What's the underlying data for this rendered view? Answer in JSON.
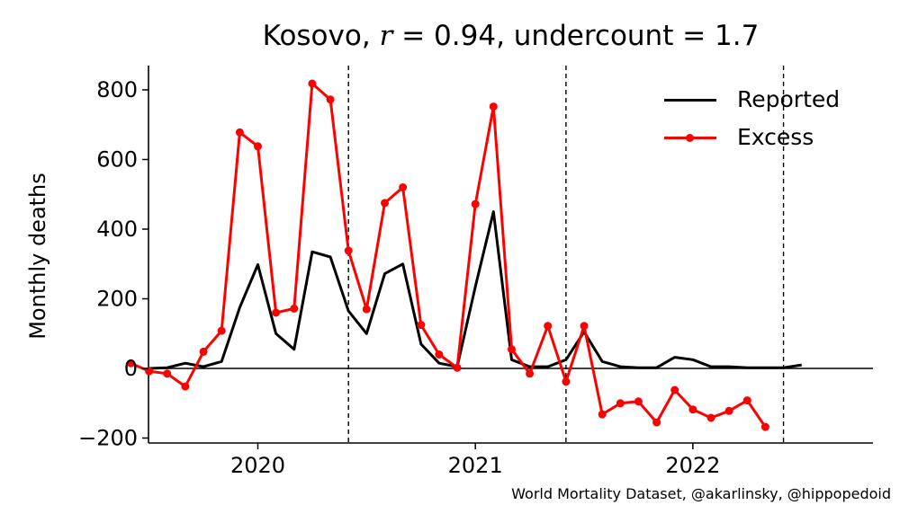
{
  "title": {
    "prefix": "Kosovo, ",
    "r_symbol": "r",
    "r_part": " = 0.94, undercount = 1.7"
  },
  "credit": "World Mortality Dataset, @akarlinsky, @hippopedoid",
  "chart_data": {
    "type": "line",
    "title": "Kosovo, r = 0.94, undercount = 1.7",
    "ylabel": "Monthly deaths",
    "xlabel": "",
    "x_ticks": [
      {
        "label": "2020",
        "value": "2020-01"
      },
      {
        "label": "2021",
        "value": "2021-01"
      },
      {
        "label": "2022",
        "value": "2022-01"
      }
    ],
    "y_ticks": [
      -200,
      0,
      200,
      400,
      600,
      800
    ],
    "y_tick_labels": [
      "−200",
      "0",
      "200",
      "400",
      "600",
      "800"
    ],
    "xlim": [
      "2019-06",
      "2022-11"
    ],
    "ylim": [
      -215,
      865
    ],
    "zero_line": true,
    "grid": false,
    "legend_position": "top-right",
    "vertical_lines": [
      "2020-06",
      "2021-06",
      "2022-06"
    ],
    "series": [
      {
        "name": "Reported",
        "color": "#000000",
        "marker": false,
        "points": [
          {
            "x": "2019-07",
            "y": 0
          },
          {
            "x": "2019-08",
            "y": 2
          },
          {
            "x": "2019-09",
            "y": 15
          },
          {
            "x": "2019-10",
            "y": 5
          },
          {
            "x": "2019-11",
            "y": 20
          },
          {
            "x": "2019-12",
            "y": 175
          },
          {
            "x": "2020-01",
            "y": 298
          },
          {
            "x": "2020-02",
            "y": 100
          },
          {
            "x": "2020-03",
            "y": 55
          },
          {
            "x": "2020-04",
            "y": 335
          },
          {
            "x": "2020-05",
            "y": 320
          },
          {
            "x": "2020-06",
            "y": 165
          },
          {
            "x": "2020-07",
            "y": 100
          },
          {
            "x": "2020-08",
            "y": 272
          },
          {
            "x": "2020-09",
            "y": 300
          },
          {
            "x": "2020-10",
            "y": 70
          },
          {
            "x": "2020-11",
            "y": 15
          },
          {
            "x": "2020-12",
            "y": 5
          },
          {
            "x": "2021-01",
            "y": 235
          },
          {
            "x": "2021-02",
            "y": 450
          },
          {
            "x": "2021-03",
            "y": 25
          },
          {
            "x": "2021-04",
            "y": 5
          },
          {
            "x": "2021-05",
            "y": 5
          },
          {
            "x": "2021-06",
            "y": 25
          },
          {
            "x": "2021-07",
            "y": 105
          },
          {
            "x": "2021-08",
            "y": 20
          },
          {
            "x": "2021-09",
            "y": 5
          },
          {
            "x": "2021-10",
            "y": 2
          },
          {
            "x": "2021-11",
            "y": 2
          },
          {
            "x": "2021-12",
            "y": 32
          },
          {
            "x": "2022-01",
            "y": 25
          },
          {
            "x": "2022-02",
            "y": 5
          },
          {
            "x": "2022-03",
            "y": 5
          },
          {
            "x": "2022-04",
            "y": 2
          },
          {
            "x": "2022-05",
            "y": 2
          },
          {
            "x": "2022-06",
            "y": 2
          },
          {
            "x": "2022-07",
            "y": 10
          }
        ]
      },
      {
        "name": "Excess",
        "color": "#ff0000",
        "marker": true,
        "points": [
          {
            "x": "2019-06",
            "y": 15
          },
          {
            "x": "2019-07",
            "y": -8
          },
          {
            "x": "2019-08",
            "y": -15
          },
          {
            "x": "2019-09",
            "y": -52
          },
          {
            "x": "2019-10",
            "y": 48
          },
          {
            "x": "2019-11",
            "y": 108
          },
          {
            "x": "2019-12",
            "y": 678
          },
          {
            "x": "2020-01",
            "y": 638
          },
          {
            "x": "2020-02",
            "y": 160
          },
          {
            "x": "2020-03",
            "y": 172
          },
          {
            "x": "2020-04",
            "y": 818
          },
          {
            "x": "2020-05",
            "y": 772
          },
          {
            "x": "2020-06",
            "y": 338
          },
          {
            "x": "2020-07",
            "y": 170
          },
          {
            "x": "2020-08",
            "y": 475
          },
          {
            "x": "2020-09",
            "y": 520
          },
          {
            "x": "2020-10",
            "y": 125
          },
          {
            "x": "2020-11",
            "y": 40
          },
          {
            "x": "2020-12",
            "y": 2
          },
          {
            "x": "2021-01",
            "y": 472
          },
          {
            "x": "2021-02",
            "y": 752
          },
          {
            "x": "2021-03",
            "y": 55
          },
          {
            "x": "2021-04",
            "y": -15
          },
          {
            "x": "2021-05",
            "y": 122
          },
          {
            "x": "2021-06",
            "y": -38
          },
          {
            "x": "2021-07",
            "y": 122
          },
          {
            "x": "2021-08",
            "y": -132
          },
          {
            "x": "2021-09",
            "y": -100
          },
          {
            "x": "2021-10",
            "y": -95
          },
          {
            "x": "2021-11",
            "y": -155
          },
          {
            "x": "2021-12",
            "y": -62
          },
          {
            "x": "2022-01",
            "y": -118
          },
          {
            "x": "2022-02",
            "y": -142
          },
          {
            "x": "2022-03",
            "y": -122
          },
          {
            "x": "2022-04",
            "y": -92
          },
          {
            "x": "2022-05",
            "y": -168
          }
        ]
      }
    ]
  }
}
